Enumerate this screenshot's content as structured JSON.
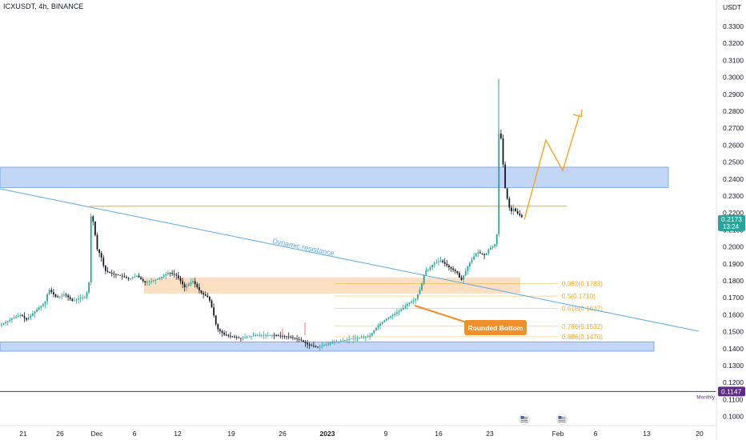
{
  "header": {
    "symbol_line": "ICXUSDT, 4h, BINANCE",
    "currency": "USDT"
  },
  "chart_data": {
    "type": "candlestick",
    "title": "ICXUSDT, 4h, BINANCE",
    "symbol": "ICXUSDT",
    "interval": "4h",
    "exchange": "BINANCE",
    "currency": "USDT",
    "ylim": [
      0.0985,
      0.3435
    ],
    "y_ticks": [
      "0.3300",
      "0.3200",
      "0.3100",
      "0.3000",
      "0.2900",
      "0.2800",
      "0.2700",
      "0.2600",
      "0.2500",
      "0.2400",
      "0.2300",
      "0.2200",
      "0.2100",
      "0.2000",
      "0.1900",
      "0.1800",
      "0.1700",
      "0.1600",
      "0.1500",
      "0.1400",
      "0.1300",
      "0.1200",
      "0.1100",
      "0.1000"
    ],
    "x_ticks": [
      "21",
      "26",
      "Dec",
      "6",
      "12",
      "19",
      "26",
      "2023",
      "9",
      "16",
      "23",
      "Feb",
      "6",
      "13",
      "20"
    ],
    "price_path": [
      [
        0,
        0.154
      ],
      [
        15,
        0.158
      ],
      [
        25,
        0.16
      ],
      [
        32,
        0.157
      ],
      [
        45,
        0.163
      ],
      [
        55,
        0.167
      ],
      [
        60,
        0.175
      ],
      [
        70,
        0.17
      ],
      [
        80,
        0.172
      ],
      [
        90,
        0.168
      ],
      [
        100,
        0.17
      ],
      [
        105,
        0.17
      ],
      [
        110,
        0.176
      ],
      [
        113,
        0.221
      ],
      [
        117,
        0.211
      ],
      [
        120,
        0.199
      ],
      [
        125,
        0.195
      ],
      [
        130,
        0.186
      ],
      [
        140,
        0.184
      ],
      [
        150,
        0.183
      ],
      [
        160,
        0.181
      ],
      [
        170,
        0.183
      ],
      [
        180,
        0.179
      ],
      [
        190,
        0.18
      ],
      [
        200,
        0.182
      ],
      [
        210,
        0.185
      ],
      [
        220,
        0.183
      ],
      [
        230,
        0.176
      ],
      [
        240,
        0.18
      ],
      [
        250,
        0.173
      ],
      [
        260,
        0.17
      ],
      [
        265,
        0.162
      ],
      [
        270,
        0.152
      ],
      [
        280,
        0.148
      ],
      [
        290,
        0.147
      ],
      [
        300,
        0.146
      ],
      [
        320,
        0.148
      ],
      [
        340,
        0.148
      ],
      [
        360,
        0.147
      ],
      [
        375,
        0.145
      ],
      [
        385,
        0.142
      ],
      [
        395,
        0.141
      ],
      [
        405,
        0.142
      ],
      [
        415,
        0.144
      ],
      [
        420,
        0.144
      ],
      [
        440,
        0.146
      ],
      [
        460,
        0.147
      ],
      [
        470,
        0.153
      ],
      [
        480,
        0.157
      ],
      [
        490,
        0.16
      ],
      [
        500,
        0.163
      ],
      [
        510,
        0.167
      ],
      [
        518,
        0.169
      ],
      [
        525,
        0.176
      ],
      [
        530,
        0.186
      ],
      [
        535,
        0.187
      ],
      [
        540,
        0.19
      ],
      [
        550,
        0.192
      ],
      [
        560,
        0.188
      ],
      [
        570,
        0.185
      ],
      [
        575,
        0.18
      ],
      [
        585,
        0.19
      ],
      [
        595,
        0.197
      ],
      [
        605,
        0.195
      ],
      [
        610,
        0.199
      ],
      [
        617,
        0.201
      ],
      [
        620,
        0.208
      ],
      [
        622,
        0.266
      ],
      [
        624,
        0.27
      ],
      [
        627,
        0.252
      ],
      [
        630,
        0.235
      ],
      [
        633,
        0.228
      ],
      [
        637,
        0.22
      ],
      [
        640,
        0.223
      ],
      [
        645,
        0.22
      ],
      [
        650,
        0.218
      ],
      [
        652,
        0.2173
      ]
    ],
    "wick_extremes": [
      {
        "label": "high",
        "value": 0.299
      },
      {
        "label": "low",
        "value": 0.139
      }
    ],
    "last_price": "0.2173",
    "countdown": "13:24",
    "monthly_label": "Monthly",
    "monthly_level": "0.1147",
    "fib_levels": [
      {
        "label": "0.382(0.1783)",
        "value": 0.1783
      },
      {
        "label": "0.5(0.1710)",
        "value": 0.171
      },
      {
        "label": "0.618(0.1637)",
        "value": 0.1637
      },
      {
        "label": "0.786(0.1532)",
        "value": 0.1532
      },
      {
        "label": "0.886(0.1470)",
        "value": 0.147
      }
    ],
    "zones": [
      {
        "kind": "resistance",
        "color": "#90b4ee",
        "low": 0.235,
        "high": 0.247
      },
      {
        "kind": "demand",
        "color": "#f7c99b",
        "low": 0.1725,
        "high": 0.182
      },
      {
        "kind": "support",
        "color": "#90b4ee",
        "low": 0.1385,
        "high": 0.144
      }
    ],
    "horizontal_line": {
      "value": 0.224,
      "color": "#f5a623"
    },
    "trendline": {
      "label": "Dynamic resistance",
      "color": "#5aa9e6"
    },
    "annotation": {
      "label": "Rounded Bottom",
      "color": "#f0902a"
    },
    "projection_color": "#f5a623",
    "colors": {
      "up": "#26a69a",
      "down": "#131722",
      "last_price_bg": "#26a69a",
      "monthly_bg": "#5b2a86",
      "fib": "#f5a623",
      "grid_axis": "#b2b5be"
    }
  }
}
